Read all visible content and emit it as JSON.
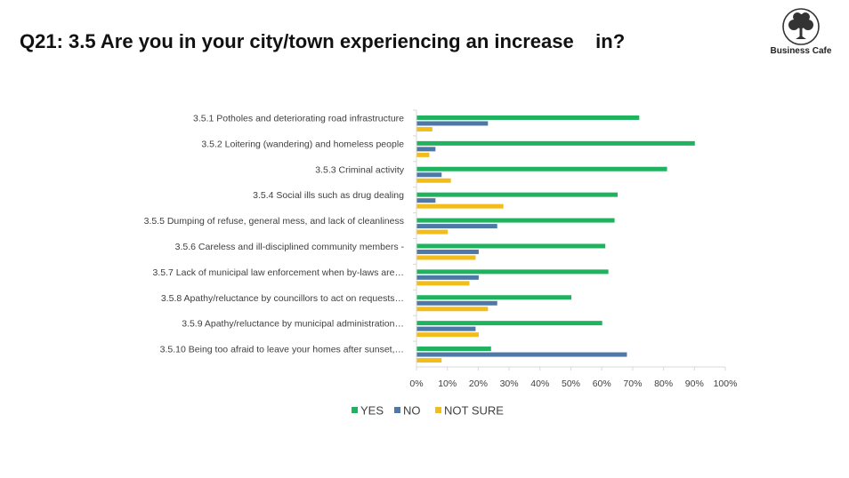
{
  "slide": {
    "title": "Q21: 3.5 Are you in your city/town experiencing an increase    in?"
  },
  "logo": {
    "name": "Business Cafe",
    "icon": "tree-icon",
    "color": "#333333"
  },
  "chart_data": {
    "type": "bar",
    "orientation": "horizontal",
    "categories": [
      "3.5.1 Potholes and deteriorating road infrastructure",
      "3.5.2 Loitering (wandering) and homeless people",
      "3.5.3 Criminal activity",
      "3.5.4 Social ills such as drug dealing",
      "3.5.5 Dumping of refuse, general mess, and lack of cleanliness",
      "3.5.6 Careless and ill-disciplined community members -",
      "3.5.7 Lack of municipal law enforcement when by-laws are…",
      "3.5.8 Apathy/reluctance by councillors to act on requests…",
      "3.5.9 Apathy/reluctance by municipal administration…",
      "3.5.10 Being too afraid to leave your homes after sunset,…"
    ],
    "series": [
      {
        "name": "YES",
        "color": "#1FB35F",
        "values": [
          72,
          90,
          81,
          65,
          64,
          61,
          62,
          50,
          60,
          24
        ]
      },
      {
        "name": "NO",
        "color": "#4E79A7",
        "values": [
          23,
          6,
          8,
          6,
          26,
          20,
          20,
          26,
          19,
          68
        ]
      },
      {
        "name": "NOT SURE",
        "color": "#F2BC1B",
        "values": [
          5,
          4,
          11,
          28,
          10,
          19,
          17,
          23,
          20,
          8
        ]
      }
    ],
    "xlim": [
      0,
      100
    ],
    "xticks": [
      "0%",
      "10%",
      "20%",
      "30%",
      "40%",
      "50%",
      "60%",
      "70%",
      "80%",
      "90%",
      "100%"
    ],
    "grid": false,
    "legend_position": "bottom"
  }
}
